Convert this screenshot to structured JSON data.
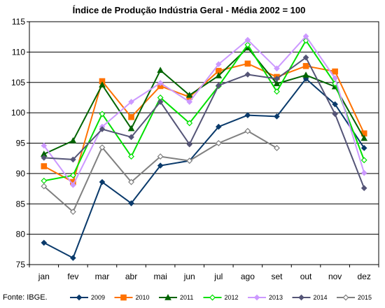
{
  "chart_data": {
    "type": "line",
    "title": "Índice de Produção Indústria Geral - Média 2002 = 100",
    "xlabel": "",
    "ylabel": "",
    "categories": [
      "jan",
      "fev",
      "mar",
      "abr",
      "mai",
      "jun",
      "jul",
      "ago",
      "set",
      "out",
      "nov",
      "dez"
    ],
    "ylim": [
      75,
      115
    ],
    "yticks": [
      75,
      80,
      85,
      90,
      95,
      100,
      105,
      110,
      115
    ],
    "grid": true,
    "legend_position": "bottom",
    "source": "Fonte: IBGE.",
    "series": [
      {
        "name": "2009",
        "color": "#0a3a6b",
        "marker": "diamond-filled",
        "values": [
          78.6,
          76.1,
          88.6,
          85.1,
          91.3,
          92.1,
          97.7,
          99.6,
          99.4,
          105.6,
          101.4,
          94.2
        ]
      },
      {
        "name": "2010",
        "color": "#ff7200",
        "marker": "square-filled",
        "values": [
          91.2,
          88.6,
          105.2,
          99.3,
          104.4,
          102.6,
          106.9,
          108.1,
          105.9,
          107.7,
          106.8,
          96.6
        ]
      },
      {
        "name": "2011",
        "color": "#006400",
        "marker": "triangle-filled",
        "values": [
          93.2,
          95.4,
          104.6,
          97.4,
          107.0,
          102.9,
          106.1,
          110.7,
          104.8,
          106.2,
          104.3,
          95.8
        ]
      },
      {
        "name": "2012",
        "color": "#00e000",
        "marker": "diamond-open",
        "values": [
          88.8,
          89.7,
          99.8,
          92.8,
          102.5,
          98.3,
          104.4,
          111.2,
          103.5,
          111.9,
          104.8,
          92.2
        ]
      },
      {
        "name": "2013",
        "color": "#cc99ff",
        "marker": "diamond-filled",
        "values": [
          94.6,
          88.1,
          97.7,
          101.8,
          104.9,
          101.8,
          108.0,
          112.0,
          107.3,
          112.6,
          105.7,
          90.1
        ]
      },
      {
        "name": "2014",
        "color": "#555577",
        "marker": "diamond-filled",
        "values": [
          92.6,
          92.3,
          97.3,
          96.0,
          101.8,
          94.8,
          104.5,
          106.3,
          105.6,
          109.1,
          99.8,
          87.6
        ]
      },
      {
        "name": "2015",
        "color": "#808080",
        "marker": "diamond-open",
        "values": [
          87.9,
          83.7,
          94.3,
          88.6,
          92.8,
          92.1,
          95.0,
          97.0,
          94.2,
          null,
          null,
          null
        ]
      }
    ]
  }
}
